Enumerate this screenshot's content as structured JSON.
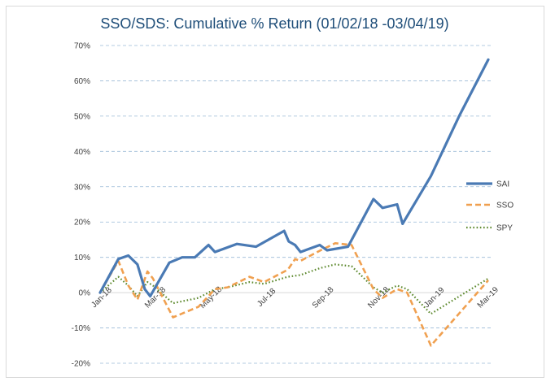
{
  "chart_data": {
    "type": "line",
    "title": "SSO/SDS: Cumulative % Return (01/02/18 -03/04/19)",
    "xlabel": "",
    "ylabel": "",
    "ylim": [
      -20,
      70
    ],
    "ytick_labels": [
      "70%",
      "60%",
      "50%",
      "40%",
      "30%",
      "20%",
      "10%",
      "0%",
      "-10%",
      "-20%"
    ],
    "x_tick_labels": [
      "Jan-18",
      "Mar-18",
      "May-18",
      "Jul-18",
      "Sep-18",
      "Nov-18",
      "Jan-19",
      "Mar-19"
    ],
    "grid": true,
    "legend_position": "right",
    "series": [
      {
        "name": "SAI",
        "color": "#4a7ab4",
        "style": "solid",
        "points": [
          [
            "2018-01-02",
            0
          ],
          [
            "2018-01-22",
            9.5
          ],
          [
            "2018-02-02",
            10.5
          ],
          [
            "2018-02-12",
            8
          ],
          [
            "2018-02-20",
            1
          ],
          [
            "2018-02-26",
            -1
          ],
          [
            "2018-03-19",
            8.5
          ],
          [
            "2018-04-02",
            10
          ],
          [
            "2018-04-16",
            10
          ],
          [
            "2018-05-01",
            13.5
          ],
          [
            "2018-05-08",
            11.5
          ],
          [
            "2018-06-01",
            13.8
          ],
          [
            "2018-06-22",
            13
          ],
          [
            "2018-07-23",
            17.5
          ],
          [
            "2018-07-28",
            14.5
          ],
          [
            "2018-08-04",
            13.5
          ],
          [
            "2018-08-10",
            11.5
          ],
          [
            "2018-08-31",
            13.5
          ],
          [
            "2018-09-08",
            12
          ],
          [
            "2018-10-01",
            13
          ],
          [
            "2018-10-29",
            26.5
          ],
          [
            "2018-11-08",
            24
          ],
          [
            "2018-11-24",
            25
          ],
          [
            "2018-11-30",
            19.5
          ],
          [
            "2018-12-31",
            33
          ],
          [
            "2019-01-31",
            50
          ],
          [
            "2019-03-04",
            66
          ]
        ]
      },
      {
        "name": "SSO",
        "color": "#f0a050",
        "style": "dashed",
        "points": [
          [
            "2018-01-02",
            0
          ],
          [
            "2018-01-22",
            9
          ],
          [
            "2018-02-02",
            2
          ],
          [
            "2018-02-12",
            -2
          ],
          [
            "2018-02-23",
            6
          ],
          [
            "2018-03-01",
            4
          ],
          [
            "2018-03-23",
            -7
          ],
          [
            "2018-04-20",
            -4
          ],
          [
            "2018-05-08",
            1
          ],
          [
            "2018-05-22",
            1.5
          ],
          [
            "2018-06-15",
            4.5
          ],
          [
            "2018-07-01",
            3
          ],
          [
            "2018-07-27",
            6.5
          ],
          [
            "2018-08-04",
            9.5
          ],
          [
            "2018-08-10",
            9
          ],
          [
            "2018-09-01",
            12
          ],
          [
            "2018-09-17",
            14
          ],
          [
            "2018-10-05",
            13.5
          ],
          [
            "2018-10-29",
            1
          ],
          [
            "2018-11-08",
            -1.5
          ],
          [
            "2018-11-24",
            1
          ],
          [
            "2018-12-05",
            0
          ],
          [
            "2018-12-31",
            -15
          ],
          [
            "2019-03-04",
            3.5
          ]
        ]
      },
      {
        "name": "SPY",
        "color": "#5e8a2f",
        "style": "dotted",
        "points": [
          [
            "2018-01-02",
            0
          ],
          [
            "2018-01-22",
            4.5
          ],
          [
            "2018-02-02",
            2
          ],
          [
            "2018-02-12",
            -1
          ],
          [
            "2018-02-23",
            3
          ],
          [
            "2018-03-01",
            2
          ],
          [
            "2018-03-23",
            -3
          ],
          [
            "2018-04-20",
            -1.5
          ],
          [
            "2018-05-08",
            1
          ],
          [
            "2018-05-22",
            1.5
          ],
          [
            "2018-06-15",
            3
          ],
          [
            "2018-07-01",
            2.5
          ],
          [
            "2018-07-27",
            4.5
          ],
          [
            "2018-08-10",
            5
          ],
          [
            "2018-09-01",
            7
          ],
          [
            "2018-09-17",
            8
          ],
          [
            "2018-10-05",
            7.5
          ],
          [
            "2018-10-29",
            1.5
          ],
          [
            "2018-11-08",
            0
          ],
          [
            "2018-11-24",
            2
          ],
          [
            "2018-12-05",
            1
          ],
          [
            "2018-12-31",
            -6
          ],
          [
            "2019-03-04",
            4
          ]
        ]
      }
    ]
  }
}
